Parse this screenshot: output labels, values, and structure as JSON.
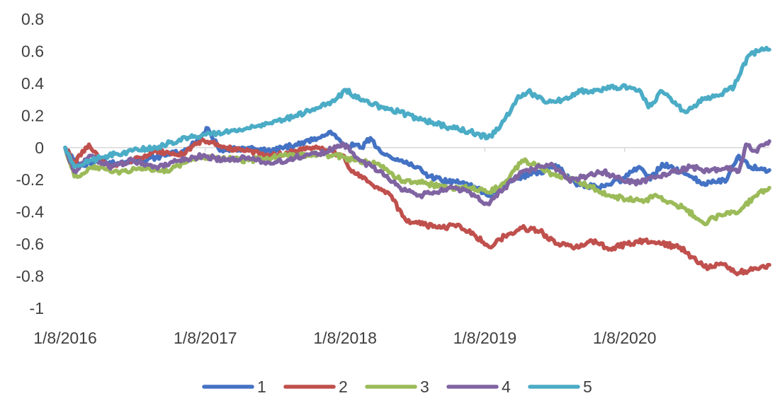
{
  "chart_data": {
    "type": "line",
    "ylim": [
      -1,
      0.8
    ],
    "yticks": [
      0.8,
      0.6,
      0.4,
      0.2,
      0,
      -0.2,
      -0.4,
      -0.6,
      -0.8,
      -1
    ],
    "ytick_labels": [
      "0.8",
      "0.6",
      "0.4",
      "0.2",
      "0",
      "-0.2",
      "-0.4",
      "-0.6",
      "-0.8",
      "-1"
    ],
    "xlim": [
      "2016-01-08",
      "2021-01-20"
    ],
    "xticks": [
      "2016-01-08",
      "2017-01-08",
      "2018-01-08",
      "2019-01-08",
      "2020-01-08"
    ],
    "xtick_labels": [
      "1/8/2016",
      "1/8/2017",
      "1/8/2018",
      "1/8/2019",
      "1/8/2020"
    ],
    "grid": false,
    "legend_position": "bottom",
    "series": [
      {
        "name": "1",
        "color": "#4472C4",
        "points": [
          [
            "2016-01-08",
            0
          ],
          [
            "2016-02-15",
            -0.12
          ],
          [
            "2016-04-01",
            -0.08
          ],
          [
            "2016-06-01",
            -0.1
          ],
          [
            "2016-09-01",
            -0.06
          ],
          [
            "2016-11-20",
            -0.02
          ],
          [
            "2017-01-15",
            0.12
          ],
          [
            "2017-02-15",
            -0.02
          ],
          [
            "2017-05-01",
            0.0
          ],
          [
            "2017-07-01",
            -0.02
          ],
          [
            "2017-09-01",
            0.02
          ],
          [
            "2017-11-01",
            0.06
          ],
          [
            "2017-12-01",
            0.1
          ],
          [
            "2018-01-10",
            0.02
          ],
          [
            "2018-02-20",
            0.0
          ],
          [
            "2018-03-15",
            0.06
          ],
          [
            "2018-04-01",
            0.0
          ],
          [
            "2018-05-01",
            -0.05
          ],
          [
            "2018-06-01",
            -0.08
          ],
          [
            "2018-07-15",
            -0.12
          ],
          [
            "2018-08-15",
            -0.18
          ],
          [
            "2018-09-15",
            -0.2
          ],
          [
            "2018-11-01",
            -0.22
          ],
          [
            "2018-12-15",
            -0.25
          ],
          [
            "2019-01-20",
            -0.3
          ],
          [
            "2019-03-01",
            -0.22
          ],
          [
            "2019-04-15",
            -0.18
          ],
          [
            "2019-06-01",
            -0.15
          ],
          [
            "2019-07-15",
            -0.12
          ],
          [
            "2019-09-01",
            -0.22
          ],
          [
            "2019-11-01",
            -0.25
          ],
          [
            "2020-01-01",
            -0.2
          ],
          [
            "2020-02-15",
            -0.12
          ],
          [
            "2020-03-15",
            -0.2
          ],
          [
            "2020-04-15",
            -0.1
          ],
          [
            "2020-06-01",
            -0.15
          ],
          [
            "2020-08-01",
            -0.22
          ],
          [
            "2020-10-01",
            -0.2
          ],
          [
            "2020-11-01",
            -0.05
          ],
          [
            "2020-12-01",
            -0.12
          ],
          [
            "2021-01-20",
            -0.14
          ]
        ]
      },
      {
        "name": "2",
        "color": "#C0504D",
        "points": [
          [
            "2016-01-08",
            0
          ],
          [
            "2016-02-01",
            -0.1
          ],
          [
            "2016-03-10",
            0.02
          ],
          [
            "2016-05-01",
            -0.12
          ],
          [
            "2016-07-01",
            -0.08
          ],
          [
            "2016-09-01",
            -0.02
          ],
          [
            "2016-11-01",
            -0.05
          ],
          [
            "2017-01-01",
            0.05
          ],
          [
            "2017-03-01",
            0.0
          ],
          [
            "2017-05-01",
            -0.02
          ],
          [
            "2017-07-01",
            -0.05
          ],
          [
            "2017-09-01",
            -0.02
          ],
          [
            "2017-11-01",
            0.0
          ],
          [
            "2018-01-05",
            -0.05
          ],
          [
            "2018-01-25",
            -0.15
          ],
          [
            "2018-03-15",
            -0.22
          ],
          [
            "2018-05-01",
            -0.28
          ],
          [
            "2018-06-15",
            -0.45
          ],
          [
            "2018-08-01",
            -0.48
          ],
          [
            "2018-09-15",
            -0.5
          ],
          [
            "2018-11-01",
            -0.48
          ],
          [
            "2018-12-15",
            -0.55
          ],
          [
            "2019-01-20",
            -0.62
          ],
          [
            "2019-03-01",
            -0.55
          ],
          [
            "2019-04-15",
            -0.5
          ],
          [
            "2019-06-01",
            -0.52
          ],
          [
            "2019-07-15",
            -0.6
          ],
          [
            "2019-09-01",
            -0.62
          ],
          [
            "2019-10-15",
            -0.58
          ],
          [
            "2019-12-01",
            -0.63
          ],
          [
            "2020-01-15",
            -0.6
          ],
          [
            "2020-03-01",
            -0.58
          ],
          [
            "2020-04-15",
            -0.6
          ],
          [
            "2020-06-01",
            -0.62
          ],
          [
            "2020-07-01",
            -0.68
          ],
          [
            "2020-08-15",
            -0.75
          ],
          [
            "2020-09-15",
            -0.72
          ],
          [
            "2020-11-01",
            -0.78
          ],
          [
            "2020-12-15",
            -0.75
          ],
          [
            "2021-01-20",
            -0.73
          ]
        ]
      },
      {
        "name": "3",
        "color": "#9BBB59",
        "points": [
          [
            "2016-01-08",
            0
          ],
          [
            "2016-02-01",
            -0.18
          ],
          [
            "2016-04-01",
            -0.12
          ],
          [
            "2016-06-01",
            -0.15
          ],
          [
            "2016-08-01",
            -0.12
          ],
          [
            "2016-10-01",
            -0.15
          ],
          [
            "2016-12-01",
            -0.08
          ],
          [
            "2017-02-01",
            -0.06
          ],
          [
            "2017-05-01",
            -0.08
          ],
          [
            "2017-08-01",
            -0.05
          ],
          [
            "2017-11-01",
            -0.04
          ],
          [
            "2018-01-05",
            -0.06
          ],
          [
            "2018-02-01",
            -0.08
          ],
          [
            "2018-04-01",
            -0.1
          ],
          [
            "2018-06-01",
            -0.2
          ],
          [
            "2018-08-01",
            -0.22
          ],
          [
            "2018-10-01",
            -0.25
          ],
          [
            "2018-12-01",
            -0.25
          ],
          [
            "2019-01-20",
            -0.28
          ],
          [
            "2019-03-01",
            -0.22
          ],
          [
            "2019-04-15",
            -0.08
          ],
          [
            "2019-06-01",
            -0.12
          ],
          [
            "2019-07-15",
            -0.18
          ],
          [
            "2019-09-01",
            -0.2
          ],
          [
            "2019-10-15",
            -0.25
          ],
          [
            "2019-12-01",
            -0.3
          ],
          [
            "2020-01-15",
            -0.32
          ],
          [
            "2020-03-01",
            -0.33
          ],
          [
            "2020-04-01",
            -0.3
          ],
          [
            "2020-05-15",
            -0.35
          ],
          [
            "2020-06-15",
            -0.38
          ],
          [
            "2020-08-01",
            -0.47
          ],
          [
            "2020-09-15",
            -0.42
          ],
          [
            "2020-11-01",
            -0.4
          ],
          [
            "2020-12-15",
            -0.3
          ],
          [
            "2021-01-20",
            -0.25
          ]
        ]
      },
      {
        "name": "4",
        "color": "#8064A2",
        "points": [
          [
            "2016-01-08",
            0
          ],
          [
            "2016-02-01",
            -0.15
          ],
          [
            "2016-03-15",
            -0.05
          ],
          [
            "2016-05-01",
            -0.12
          ],
          [
            "2016-07-01",
            -0.08
          ],
          [
            "2016-09-01",
            -0.12
          ],
          [
            "2016-11-01",
            -0.08
          ],
          [
            "2017-01-01",
            -0.05
          ],
          [
            "2017-03-01",
            -0.08
          ],
          [
            "2017-05-01",
            -0.06
          ],
          [
            "2017-07-01",
            -0.1
          ],
          [
            "2017-09-01",
            -0.06
          ],
          [
            "2017-11-01",
            -0.04
          ],
          [
            "2018-01-05",
            0.02
          ],
          [
            "2018-02-15",
            -0.08
          ],
          [
            "2018-04-15",
            -0.15
          ],
          [
            "2018-06-01",
            -0.25
          ],
          [
            "2018-07-15",
            -0.3
          ],
          [
            "2018-09-01",
            -0.28
          ],
          [
            "2018-10-15",
            -0.25
          ],
          [
            "2018-12-01",
            -0.28
          ],
          [
            "2019-01-15",
            -0.35
          ],
          [
            "2019-03-01",
            -0.25
          ],
          [
            "2019-04-15",
            -0.15
          ],
          [
            "2019-06-01",
            -0.12
          ],
          [
            "2019-07-01",
            -0.1
          ],
          [
            "2019-08-15",
            -0.2
          ],
          [
            "2019-10-01",
            -0.18
          ],
          [
            "2019-11-15",
            -0.15
          ],
          [
            "2020-01-01",
            -0.2
          ],
          [
            "2020-02-15",
            -0.22
          ],
          [
            "2020-04-01",
            -0.18
          ],
          [
            "2020-05-15",
            -0.15
          ],
          [
            "2020-07-01",
            -0.12
          ],
          [
            "2020-08-15",
            -0.15
          ],
          [
            "2020-10-01",
            -0.12
          ],
          [
            "2020-11-01",
            -0.15
          ],
          [
            "2020-11-20",
            0.02
          ],
          [
            "2020-12-15",
            -0.02
          ],
          [
            "2021-01-20",
            0.04
          ]
        ]
      },
      {
        "name": "5",
        "color": "#4BACC6",
        "points": [
          [
            "2016-01-08",
            0
          ],
          [
            "2016-02-01",
            -0.12
          ],
          [
            "2016-03-15",
            -0.08
          ],
          [
            "2016-05-01",
            -0.05
          ],
          [
            "2016-07-01",
            -0.02
          ],
          [
            "2016-09-01",
            0.0
          ],
          [
            "2016-11-01",
            0.05
          ],
          [
            "2017-01-01",
            0.08
          ],
          [
            "2017-03-01",
            0.1
          ],
          [
            "2017-05-01",
            0.12
          ],
          [
            "2017-07-01",
            0.15
          ],
          [
            "2017-09-01",
            0.2
          ],
          [
            "2017-11-01",
            0.25
          ],
          [
            "2017-12-15",
            0.3
          ],
          [
            "2018-01-10",
            0.36
          ],
          [
            "2018-02-15",
            0.3
          ],
          [
            "2018-04-15",
            0.25
          ],
          [
            "2018-06-01",
            0.22
          ],
          [
            "2018-07-15",
            0.18
          ],
          [
            "2018-09-01",
            0.15
          ],
          [
            "2018-10-15",
            0.12
          ],
          [
            "2018-12-01",
            0.1
          ],
          [
            "2019-01-15",
            0.06
          ],
          [
            "2019-02-15",
            0.12
          ],
          [
            "2019-04-01",
            0.3
          ],
          [
            "2019-05-01",
            0.35
          ],
          [
            "2019-06-15",
            0.28
          ],
          [
            "2019-08-01",
            0.3
          ],
          [
            "2019-09-15",
            0.35
          ],
          [
            "2019-11-01",
            0.36
          ],
          [
            "2020-01-01",
            0.38
          ],
          [
            "2020-02-15",
            0.36
          ],
          [
            "2020-03-10",
            0.25
          ],
          [
            "2020-04-15",
            0.35
          ],
          [
            "2020-05-15",
            0.28
          ],
          [
            "2020-06-15",
            0.22
          ],
          [
            "2020-08-01",
            0.3
          ],
          [
            "2020-09-15",
            0.33
          ],
          [
            "2020-10-20",
            0.38
          ],
          [
            "2020-11-10",
            0.5
          ],
          [
            "2020-12-01",
            0.58
          ],
          [
            "2020-12-20",
            0.6
          ],
          [
            "2021-01-20",
            0.61
          ]
        ]
      }
    ]
  }
}
